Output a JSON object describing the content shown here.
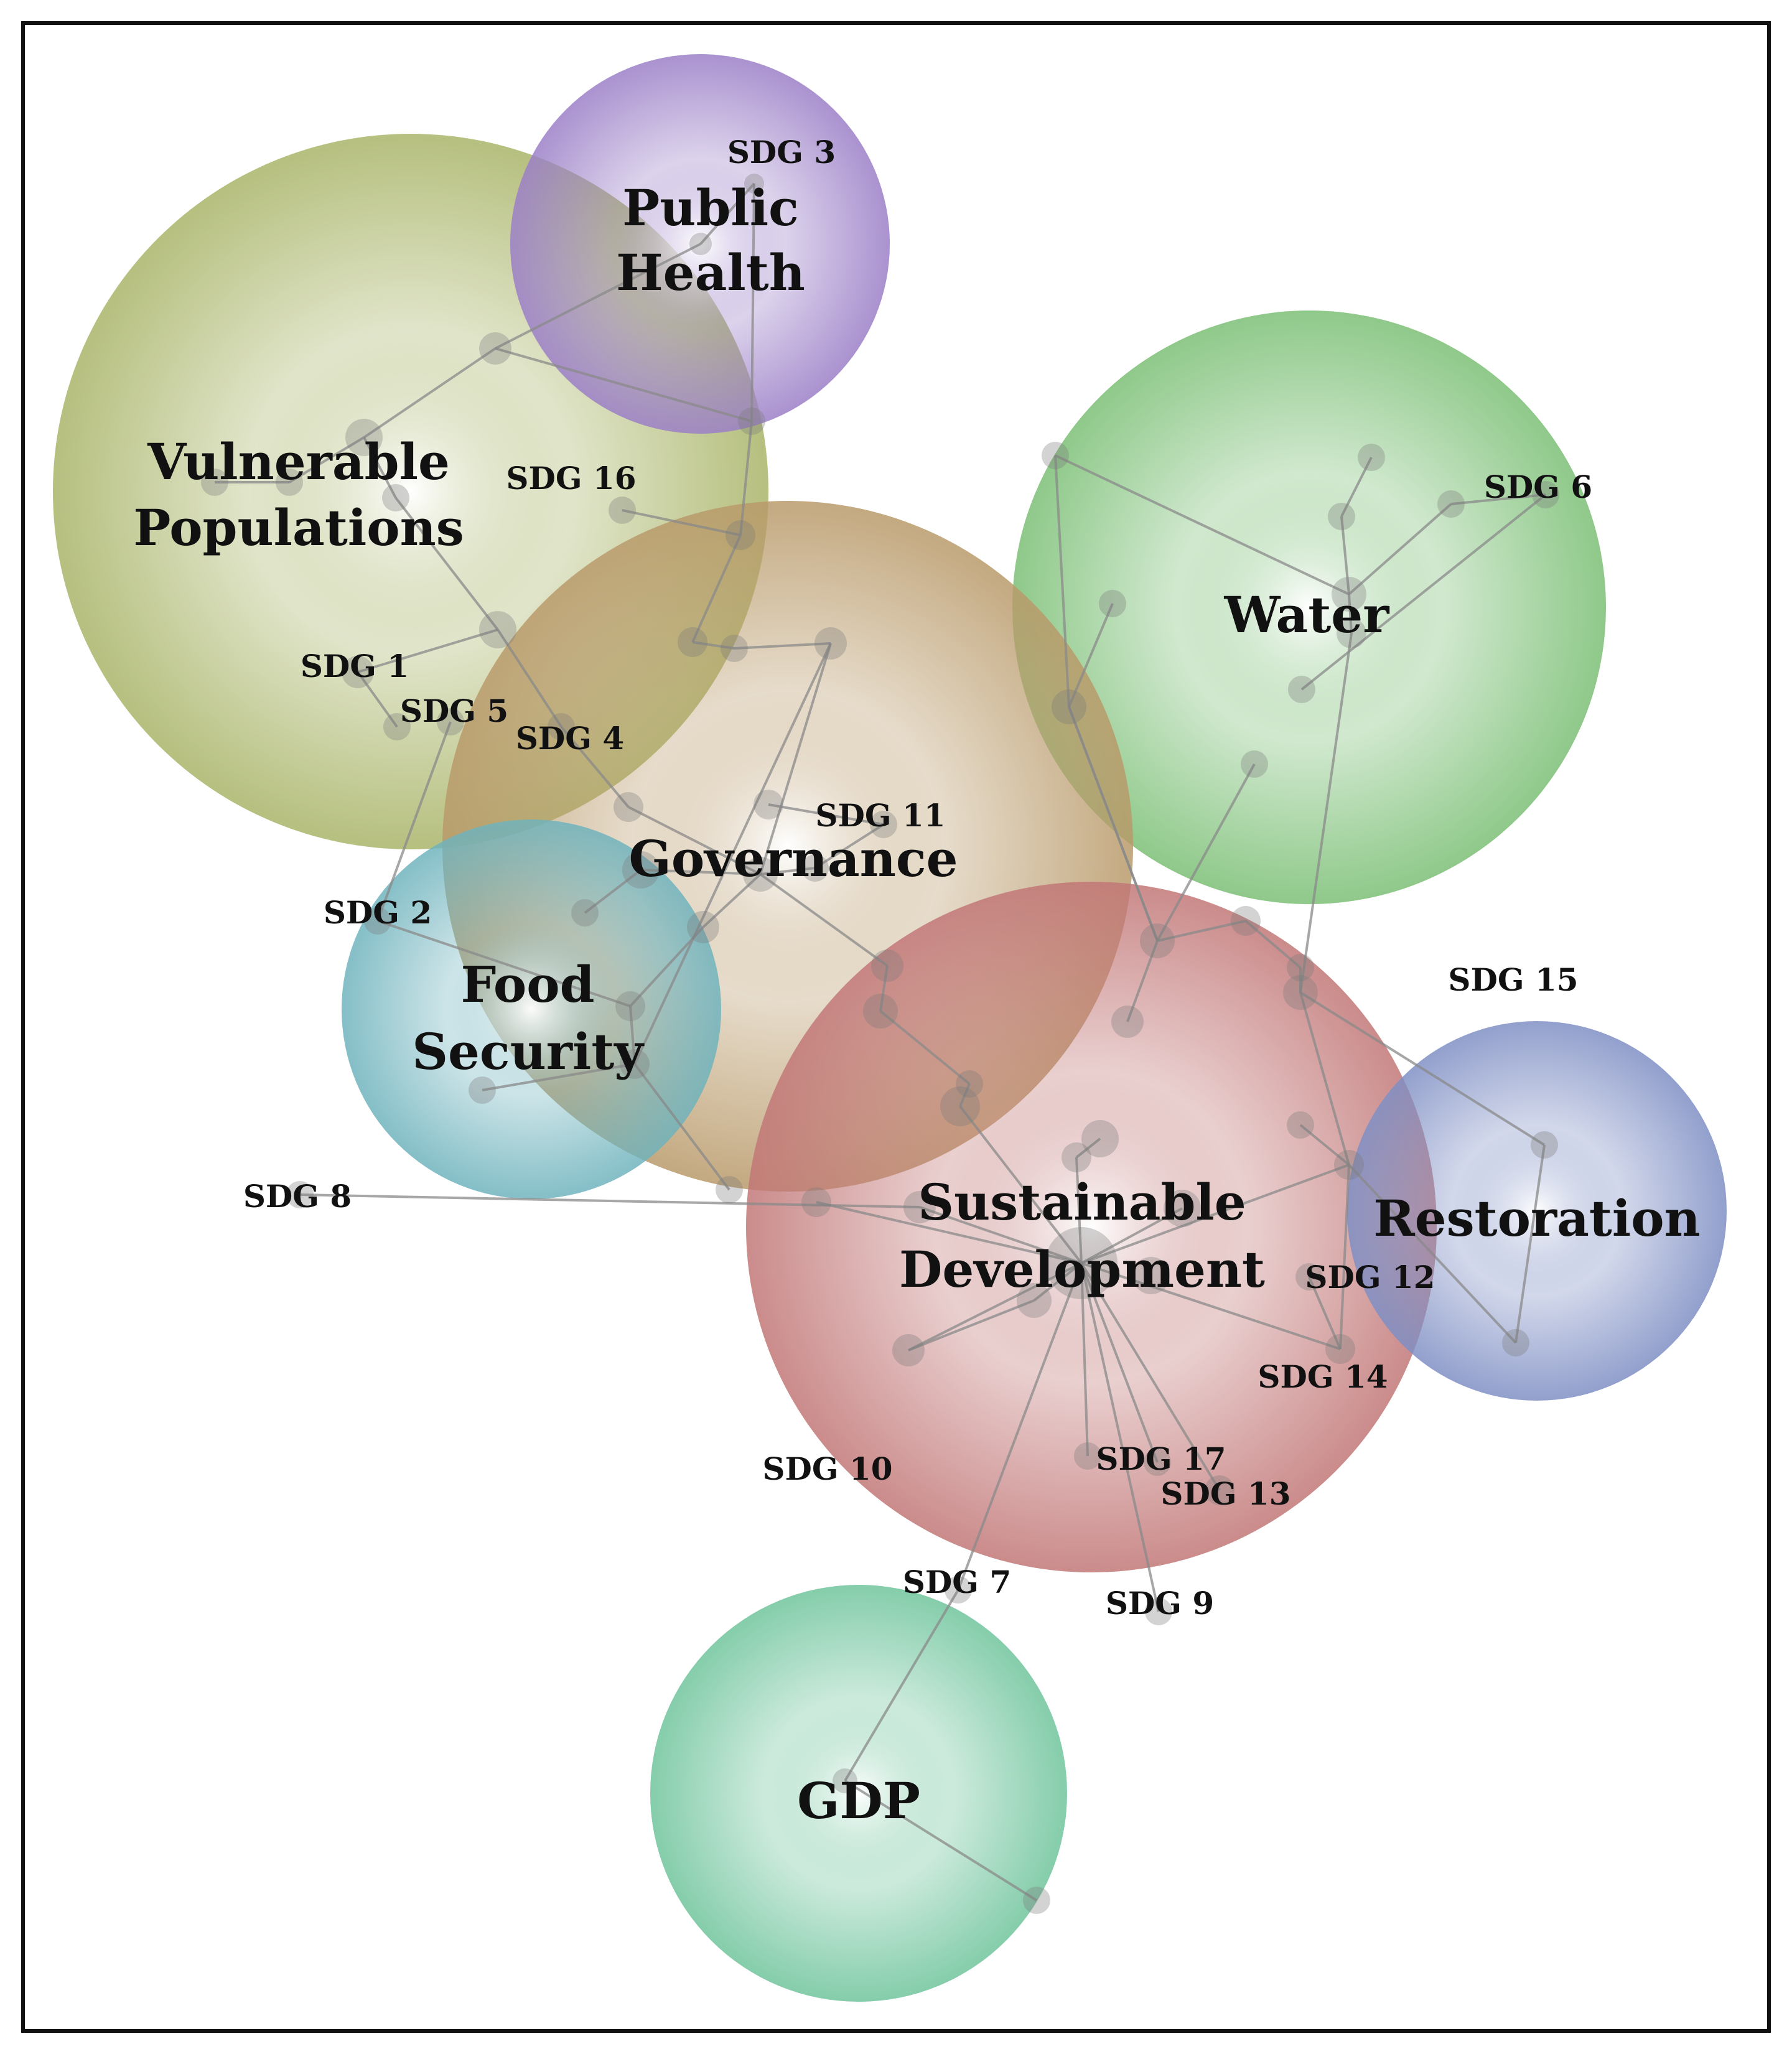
{
  "clusters": [
    {
      "id": "vulnerable",
      "lines": [
        "Vulnerable",
        "Populations"
      ],
      "color": "#a9b468"
    },
    {
      "id": "public-health",
      "lines": [
        "Public",
        "Health"
      ],
      "color": "#9b7fc7"
    },
    {
      "id": "water",
      "lines": [
        "Water"
      ],
      "color": "#7bbf75"
    },
    {
      "id": "governance",
      "lines": [
        "Governance"
      ],
      "color": "#b99a6a"
    },
    {
      "id": "food-security",
      "lines": [
        "Food",
        "Security"
      ],
      "color": "#6fb3bd"
    },
    {
      "id": "sustainable-development",
      "lines": [
        "Sustainable",
        "Development"
      ],
      "color": "#c27777"
    },
    {
      "id": "restoration",
      "lines": [
        "Restoration"
      ],
      "color": "#7f8fc4"
    },
    {
      "id": "gdp",
      "lines": [
        "GDP"
      ],
      "color": "#6fc49c"
    }
  ],
  "sdg_labels": [
    {
      "id": "sdg-1",
      "text": "SDG 1"
    },
    {
      "id": "sdg-2",
      "text": "SDG 2"
    },
    {
      "id": "sdg-3",
      "text": "SDG 3"
    },
    {
      "id": "sdg-4",
      "text": "SDG 4"
    },
    {
      "id": "sdg-5",
      "text": "SDG 5"
    },
    {
      "id": "sdg-6",
      "text": "SDG 6"
    },
    {
      "id": "sdg-7",
      "text": "SDG 7"
    },
    {
      "id": "sdg-8",
      "text": "SDG 8"
    },
    {
      "id": "sdg-9",
      "text": "SDG 9"
    },
    {
      "id": "sdg-10",
      "text": "SDG 10"
    },
    {
      "id": "sdg-11",
      "text": "SDG 11"
    },
    {
      "id": "sdg-12",
      "text": "SDG 12"
    },
    {
      "id": "sdg-13",
      "text": "SDG 13"
    },
    {
      "id": "sdg-14",
      "text": "SDG 14"
    },
    {
      "id": "sdg-15",
      "text": "SDG 15"
    },
    {
      "id": "sdg-16",
      "text": "SDG 16"
    },
    {
      "id": "sdg-17",
      "text": "SDG 17"
    }
  ]
}
